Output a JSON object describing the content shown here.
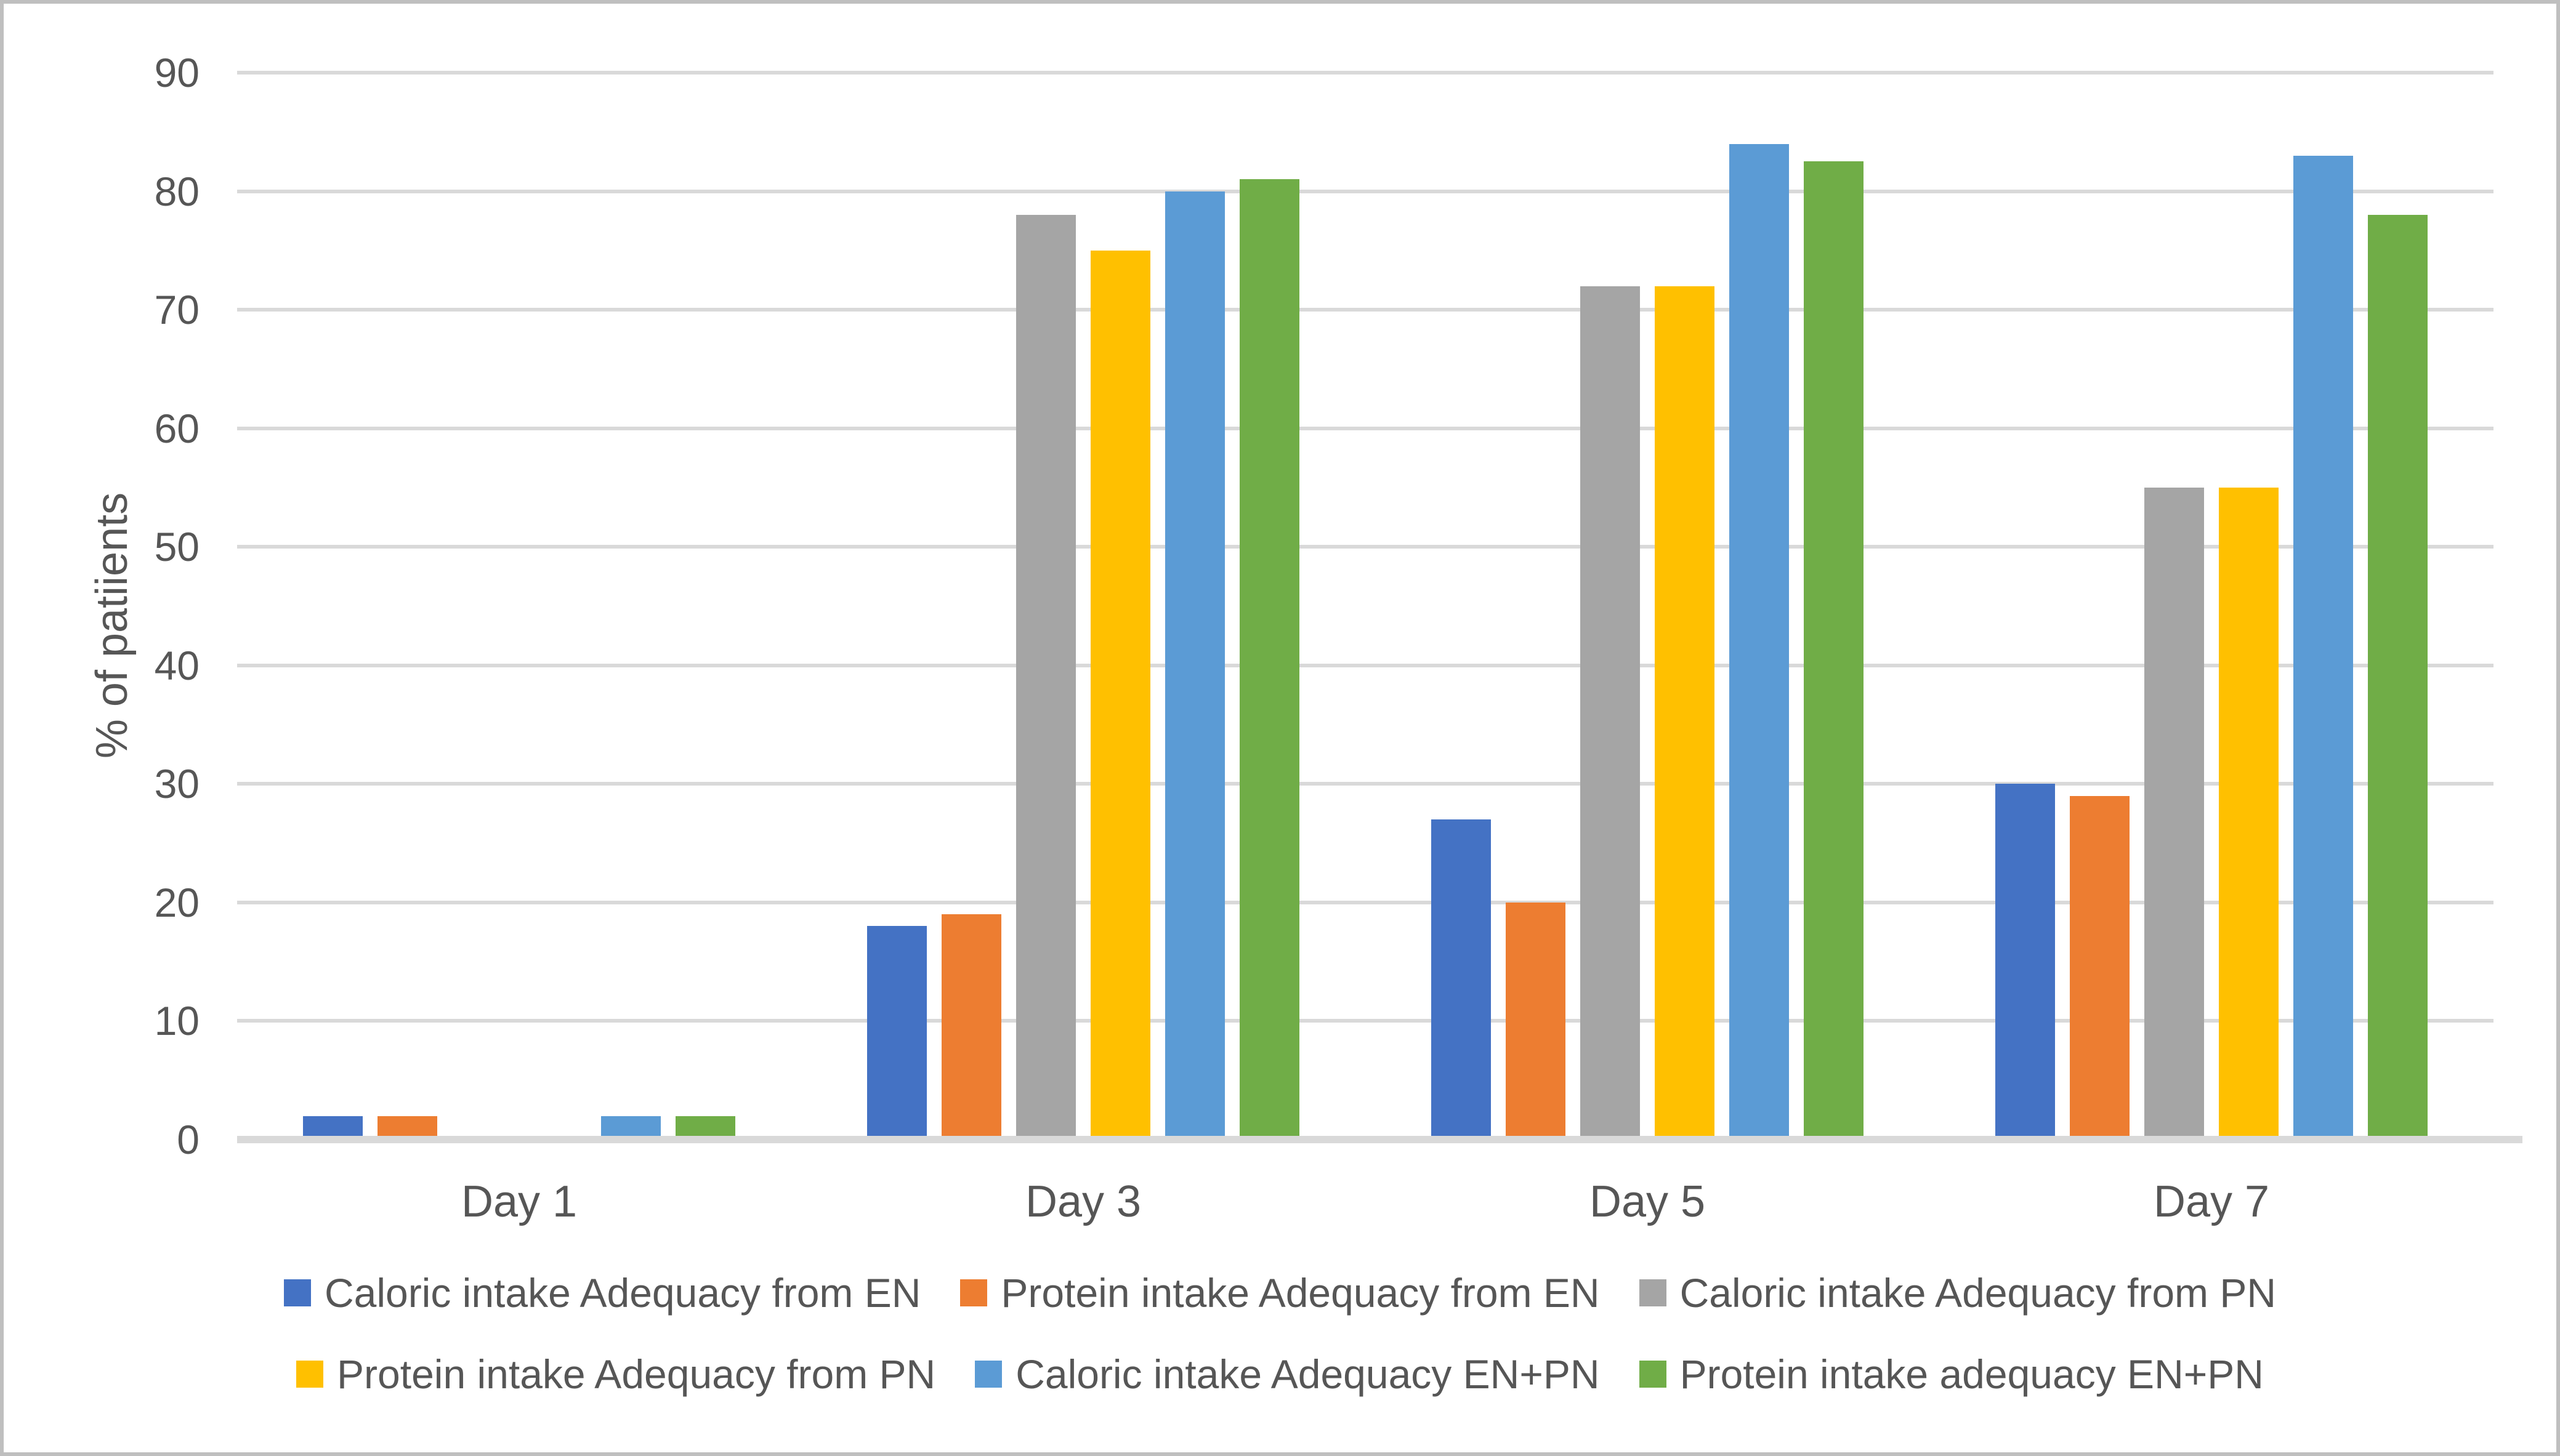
{
  "chart_data": {
    "type": "bar",
    "title": "",
    "xlabel": "",
    "ylabel": "% of patiients",
    "categories": [
      "Day 1",
      "Day 3",
      "Day 5",
      "Day 7"
    ],
    "series": [
      {
        "name": "Caloric intake Adequacy from EN",
        "color": "#4472C4",
        "values": [
          2,
          18,
          27,
          30
        ]
      },
      {
        "name": "Protein intake Adequacy from EN",
        "color": "#ED7D31",
        "values": [
          2,
          19,
          20,
          29
        ]
      },
      {
        "name": "Caloric intake Adequacy from  PN",
        "color": "#A5A5A5",
        "values": [
          0,
          78,
          72,
          55
        ]
      },
      {
        "name": "Protein intake Adequacy from PN",
        "color": "#FFC000",
        "values": [
          0,
          75,
          72,
          55
        ]
      },
      {
        "name": "Caloric intake Adequacy  EN+PN",
        "color": "#5B9BD5",
        "values": [
          2,
          80,
          84,
          83
        ]
      },
      {
        "name": "Protein intake adequacy EN+PN",
        "color": "#70AD47",
        "values": [
          2,
          81,
          82.5,
          78
        ]
      }
    ],
    "ylim": [
      0,
      90
    ],
    "yticks": [
      0,
      10,
      20,
      30,
      40,
      50,
      60,
      70,
      80,
      90
    ],
    "grid": true,
    "gridline_color": "#D9D9D9",
    "axis_text_color": "#565656",
    "legend_position": "bottom",
    "legend_rows": [
      [
        0,
        1,
        2
      ],
      [
        3,
        4,
        5
      ]
    ]
  }
}
